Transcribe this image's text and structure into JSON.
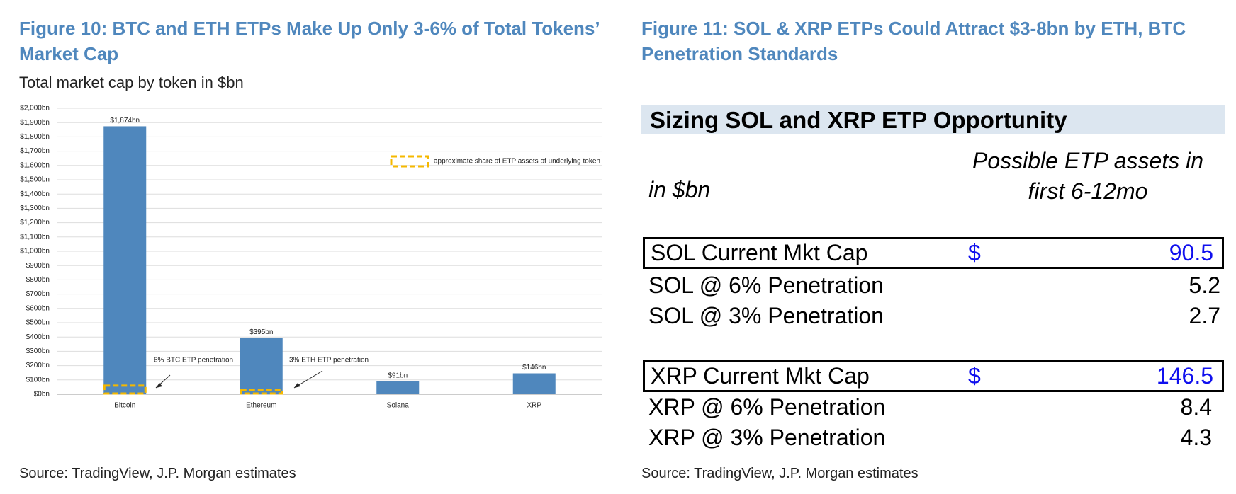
{
  "left": {
    "figure_title": "Figure 10: BTC and ETH ETPs Make Up Only 3-6% of Total Tokens’ Market Cap",
    "source": "Source: TradingView, J.P. Morgan estimates"
  },
  "chart_data": {
    "type": "bar",
    "title": "Total market cap by token in $bn",
    "categories": [
      "Bitcoin",
      "Ethereum",
      "Solana",
      "XRP"
    ],
    "values": [
      1874,
      395,
      91,
      146
    ],
    "value_labels": [
      "$1,874bn",
      "$395bn",
      "$91bn",
      "$146bn"
    ],
    "color": "#4f87bd",
    "ylim": [
      0,
      2000
    ],
    "yticks": [
      {
        "value": 0,
        "label": "$0bn"
      },
      {
        "value": 100,
        "label": "$100bn"
      },
      {
        "value": 200,
        "label": "$200bn"
      },
      {
        "value": 300,
        "label": "$300bn"
      },
      {
        "value": 400,
        "label": "$400bn"
      },
      {
        "value": 500,
        "label": "$500bn"
      },
      {
        "value": 600,
        "label": "$600bn"
      },
      {
        "value": 700,
        "label": "$700bn"
      },
      {
        "value": 800,
        "label": "$800bn"
      },
      {
        "value": 900,
        "label": "$900bn"
      },
      {
        "value": 1000,
        "label": "$1,000bn"
      },
      {
        "value": 1100,
        "label": "$1,100bn"
      },
      {
        "value": 1200,
        "label": "$1,200bn"
      },
      {
        "value": 1300,
        "label": "$1,300bn"
      },
      {
        "value": 1400,
        "label": "$1,400bn"
      },
      {
        "value": 1500,
        "label": "$1,500bn"
      },
      {
        "value": 1600,
        "label": "$1,600bn"
      },
      {
        "value": 1700,
        "label": "$1,700bn"
      },
      {
        "value": 1800,
        "label": "$1,800bn"
      },
      {
        "value": 1900,
        "label": "$1,900bn"
      },
      {
        "value": 2000,
        "label": "$2,000bn"
      }
    ],
    "grid": true,
    "etp_share": {
      "name": "approximate share of ETP assets of underlying token",
      "color": "#f5b800",
      "values": [
        60,
        30,
        null,
        null
      ]
    },
    "annotations": [
      "6% BTC ETP penetration",
      "3% ETH ETP penetration"
    ]
  },
  "right": {
    "figure_title": "Figure 11: SOL & XRP ETPs Could Attract $3-8bn by ETH, BTC Penetration Standards",
    "table": {
      "title": "Sizing SOL and XRP ETP Opportunity",
      "unit": "in $bn",
      "column": "Possible ETP assets in first 6-12mo",
      "rows": [
        [
          "SOL Current Mkt Cap",
          "$",
          "90.5"
        ],
        [
          "SOL @ 6% Penetration",
          "5.2"
        ],
        [
          "SOL @ 3% Penetration",
          "2.7"
        ],
        [
          "XRP Current Mkt Cap",
          "$",
          "146.5"
        ],
        [
          "XRP @ 6% Penetration",
          "8.4"
        ],
        [
          "XRP @ 3% Penetration",
          "4.3"
        ]
      ]
    },
    "source": "Source: TradingView, J.P. Morgan estimates"
  }
}
